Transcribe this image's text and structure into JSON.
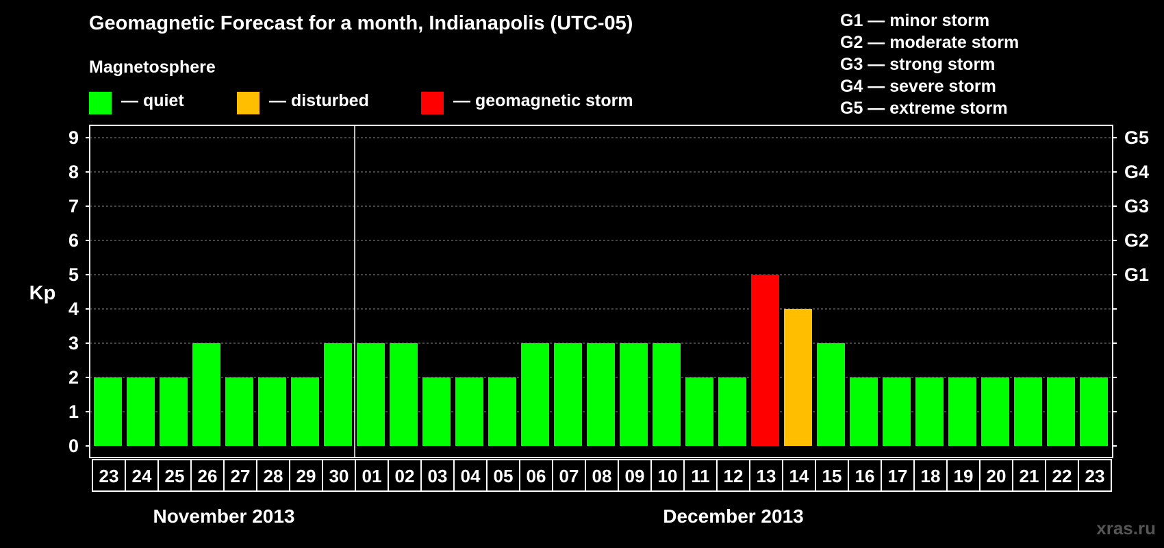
{
  "title": "Geomagnetic Forecast for a month, Indianapolis (UTC-05)",
  "subtitle": "Magnetosphere",
  "legend": [
    {
      "label": "— quiet",
      "color": "#00ff00"
    },
    {
      "label": "— disturbed",
      "color": "#ffbf00"
    },
    {
      "label": "— geomagnetic storm",
      "color": "#ff0000"
    }
  ],
  "g_legend": [
    "G1 — minor storm",
    "G2 — moderate storm",
    "G3 — strong storm",
    "G4 — severe storm",
    "G5 — extreme storm"
  ],
  "watermark": "xras.ru",
  "chart_data": {
    "type": "bar",
    "ylabel": "Kp",
    "ylim": [
      0,
      9
    ],
    "yticks": [
      0,
      1,
      2,
      3,
      4,
      5,
      6,
      7,
      8,
      9
    ],
    "right_ticks": [
      {
        "value": 5,
        "label": "G1"
      },
      {
        "value": 6,
        "label": "G2"
      },
      {
        "value": 7,
        "label": "G3"
      },
      {
        "value": 8,
        "label": "G4"
      },
      {
        "value": 9,
        "label": "G5"
      }
    ],
    "categories": [
      "23",
      "24",
      "25",
      "26",
      "27",
      "28",
      "29",
      "30",
      "01",
      "02",
      "03",
      "04",
      "05",
      "06",
      "07",
      "08",
      "09",
      "10",
      "11",
      "12",
      "13",
      "14",
      "15",
      "16",
      "17",
      "18",
      "19",
      "20",
      "21",
      "22",
      "23"
    ],
    "values": [
      2,
      2,
      2,
      3,
      2,
      2,
      2,
      3,
      3,
      3,
      2,
      2,
      2,
      3,
      3,
      3,
      3,
      3,
      2,
      2,
      5,
      4,
      3,
      2,
      2,
      2,
      2,
      2,
      2,
      2,
      2
    ],
    "status": [
      "quiet",
      "quiet",
      "quiet",
      "quiet",
      "quiet",
      "quiet",
      "quiet",
      "quiet",
      "quiet",
      "quiet",
      "quiet",
      "quiet",
      "quiet",
      "quiet",
      "quiet",
      "quiet",
      "quiet",
      "quiet",
      "quiet",
      "quiet",
      "storm",
      "disturbed",
      "quiet",
      "quiet",
      "quiet",
      "quiet",
      "quiet",
      "quiet",
      "quiet",
      "quiet",
      "quiet"
    ],
    "colors": {
      "quiet": "#00ff00",
      "disturbed": "#ffbf00",
      "storm": "#ff0000"
    },
    "months": [
      {
        "label": "November 2013",
        "start": 0,
        "end": 7
      },
      {
        "label": "December 2013",
        "start": 8,
        "end": 30
      }
    ],
    "grid": true
  }
}
